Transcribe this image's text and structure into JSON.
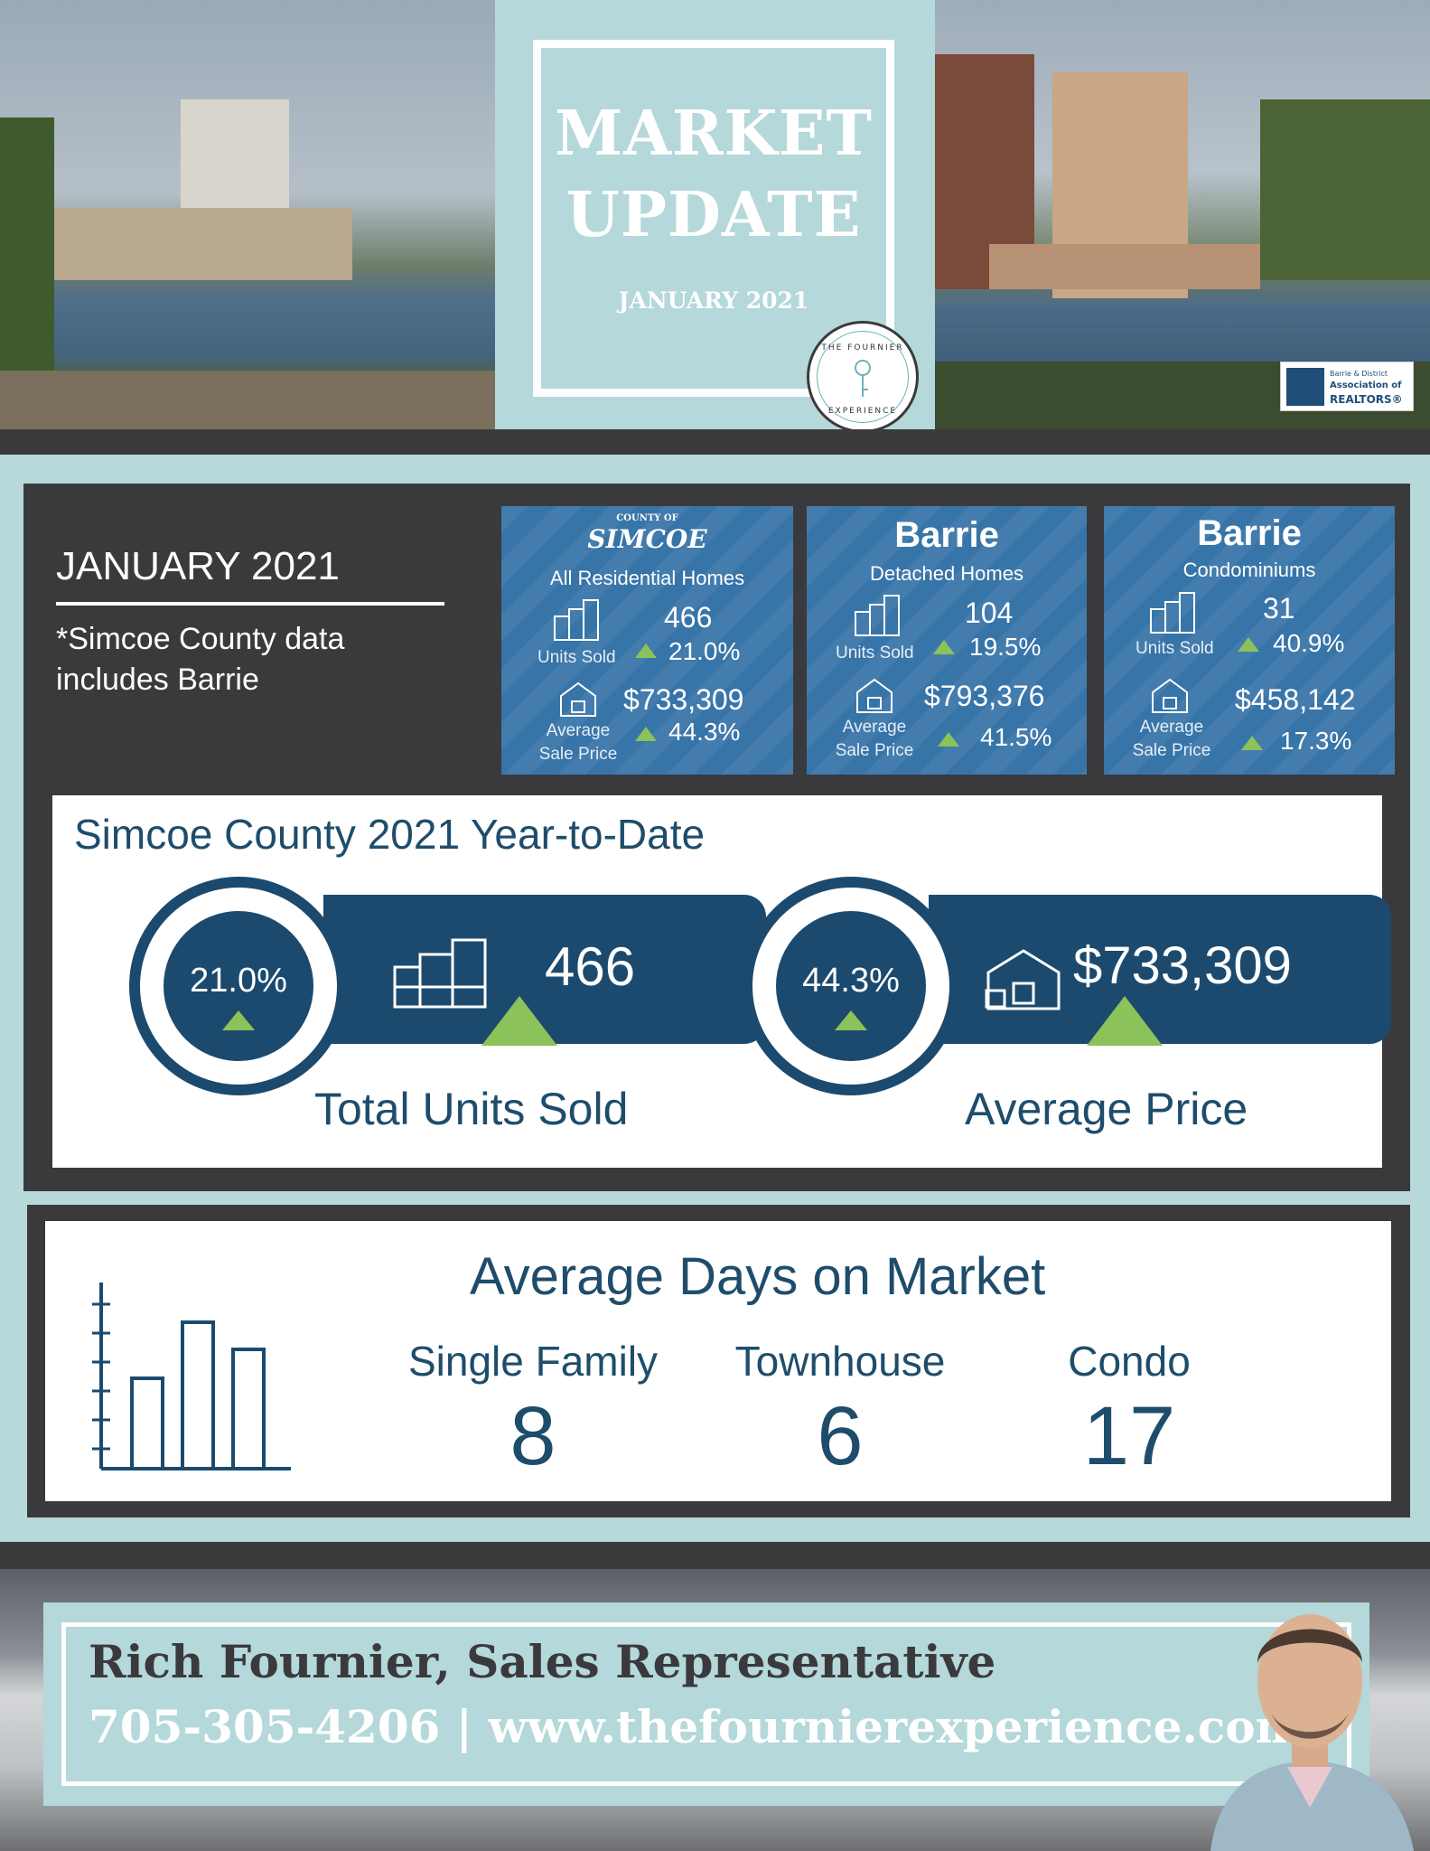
{
  "header": {
    "title_line1": "MARKET",
    "title_line2": "UPDATE",
    "subtitle": "JANUARY 2021",
    "logo_top": "THE FOURNIER",
    "logo_bottom": "EXPERIENCE",
    "realtor_line1": "Barrie & District",
    "realtor_line2": "Association of",
    "realtor_line3": "REALTORS®"
  },
  "summary": {
    "title": "JANUARY 2021",
    "note_line1": "*Simcoe County data",
    "note_line2": "includes Barrie"
  },
  "cards": [
    {
      "brand": "SIMCOE",
      "brand_small": "COUNTY OF",
      "category": "All Residential Homes",
      "units_label": "Units Sold",
      "units_value": "466",
      "units_pct": "21.0%",
      "price_label_1": "Average",
      "price_label_2": "Sale Price",
      "price_value": "$733,309",
      "price_pct": "44.3%"
    },
    {
      "brand": "Barrie",
      "category": "Detached Homes",
      "units_label": "Units Sold",
      "units_value": "104",
      "units_pct": "19.5%",
      "price_label_1": "Average",
      "price_label_2": "Sale Price",
      "price_value": "$793,376",
      "price_pct": "41.5%"
    },
    {
      "brand": "Barrie",
      "category": "Condominiums",
      "units_label": "Units Sold",
      "units_value": "31",
      "units_pct": "40.9%",
      "price_label_1": "Average",
      "price_label_2": "Sale Price",
      "price_value": "$458,142",
      "price_pct": "17.3%"
    }
  ],
  "ytd": {
    "title": "Simcoe County 2021 Year-to-Date",
    "units": {
      "pct": "21.0%",
      "value": "466",
      "caption": "Total Units Sold"
    },
    "price": {
      "pct": "44.3%",
      "value": "$733,309",
      "caption": "Average Price"
    }
  },
  "days_on_market": {
    "title": "Average Days on Market",
    "items": [
      {
        "label": "Single Family",
        "value": "8"
      },
      {
        "label": "Townhouse",
        "value": "6"
      },
      {
        "label": "Condo",
        "value": "17"
      }
    ]
  },
  "footer": {
    "name": "Rich Fournier, Sales Representative",
    "contact": "705-305-4206  |  www.thefournierexperience.com"
  },
  "colors": {
    "accent_teal": "#b5d8da",
    "navy": "#1b4a6e",
    "card_blue": "#3774a8",
    "dark_gray": "#3a3a3d",
    "green_up": "#8bc25a"
  },
  "icons": [
    "key-icon",
    "units-buildings-icon",
    "house-sale-icon",
    "bar-chart-icon",
    "triangle-up-icon"
  ]
}
